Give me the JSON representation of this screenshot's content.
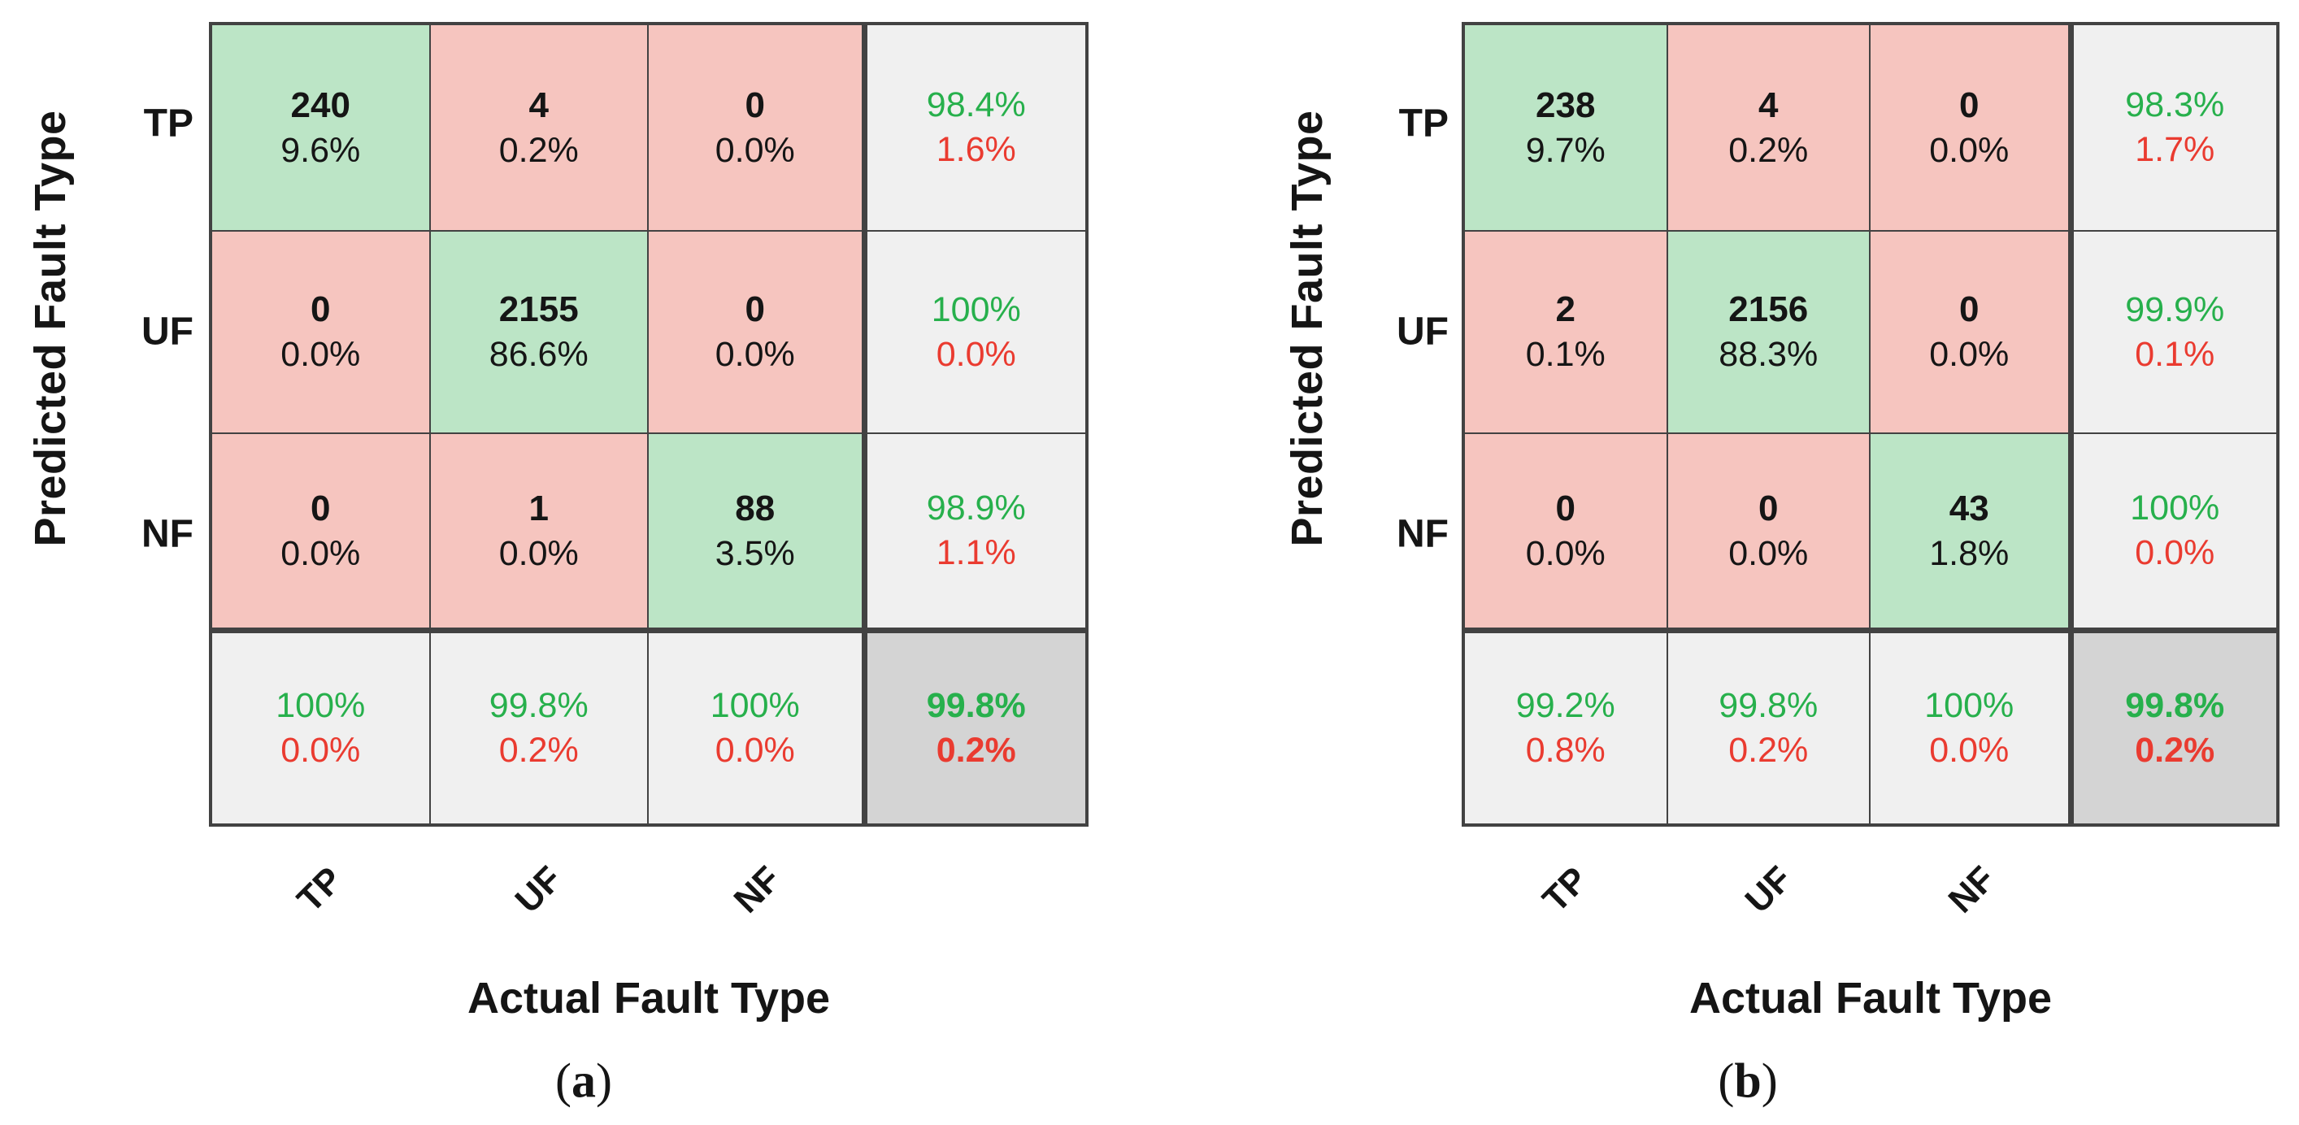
{
  "colors": {
    "diagonal_fill": "#bce5c6",
    "off_diagonal_fill": "#f6c5bf",
    "summary_fill": "#f0f0f0",
    "total_fill": "#d4d4d4",
    "positive_text": "#27b04c",
    "negative_text": "#ea3b30",
    "grid_line": "#424242"
  },
  "chart_data": [
    {
      "type": "heatmap",
      "variant": "confusion-matrix",
      "caption": {
        "open": "(",
        "letter": "a",
        "close": ")"
      },
      "xlabel": "Actual Fault Type",
      "ylabel": "Predicted Fault Type",
      "x_categories": [
        "TP",
        "UF",
        "NF"
      ],
      "y_categories": [
        "TP",
        "UF",
        "NF"
      ],
      "cells": [
        [
          {
            "count": 240,
            "pct": "9.6%"
          },
          {
            "count": 4,
            "pct": "0.2%"
          },
          {
            "count": 0,
            "pct": "0.0%"
          }
        ],
        [
          {
            "count": 0,
            "pct": "0.0%"
          },
          {
            "count": 2155,
            "pct": "86.6%"
          },
          {
            "count": 0,
            "pct": "0.0%"
          }
        ],
        [
          {
            "count": 0,
            "pct": "0.0%"
          },
          {
            "count": 1,
            "pct": "0.0%"
          },
          {
            "count": 88,
            "pct": "3.5%"
          }
        ]
      ],
      "row_summary": [
        {
          "green": "98.4%",
          "red": "1.6%"
        },
        {
          "green": "100%",
          "red": "0.0%"
        },
        {
          "green": "98.9%",
          "red": "1.1%"
        }
      ],
      "col_summary": [
        {
          "green": "100%",
          "red": "0.0%"
        },
        {
          "green": "99.8%",
          "red": "0.2%"
        },
        {
          "green": "100%",
          "red": "0.0%"
        }
      ],
      "total": {
        "green": "99.8%",
        "red": "0.2%"
      }
    },
    {
      "type": "heatmap",
      "variant": "confusion-matrix",
      "caption": {
        "open": "(",
        "letter": "b",
        "close": ")"
      },
      "xlabel": "Actual Fault Type",
      "ylabel": "Predicted Fault Type",
      "x_categories": [
        "TP",
        "UF",
        "NF"
      ],
      "y_categories": [
        "TP",
        "UF",
        "NF"
      ],
      "cells": [
        [
          {
            "count": 238,
            "pct": "9.7%"
          },
          {
            "count": 4,
            "pct": "0.2%"
          },
          {
            "count": 0,
            "pct": "0.0%"
          }
        ],
        [
          {
            "count": 2,
            "pct": "0.1%"
          },
          {
            "count": 2156,
            "pct": "88.3%"
          },
          {
            "count": 0,
            "pct": "0.0%"
          }
        ],
        [
          {
            "count": 0,
            "pct": "0.0%"
          },
          {
            "count": 0,
            "pct": "0.0%"
          },
          {
            "count": 43,
            "pct": "1.8%"
          }
        ]
      ],
      "row_summary": [
        {
          "green": "98.3%",
          "red": "1.7%"
        },
        {
          "green": "99.9%",
          "red": "0.1%"
        },
        {
          "green": "100%",
          "red": "0.0%"
        }
      ],
      "col_summary": [
        {
          "green": "99.2%",
          "red": "0.8%"
        },
        {
          "green": "99.8%",
          "red": "0.2%"
        },
        {
          "green": "100%",
          "red": "0.0%"
        }
      ],
      "total": {
        "green": "99.8%",
        "red": "0.2%"
      }
    }
  ]
}
